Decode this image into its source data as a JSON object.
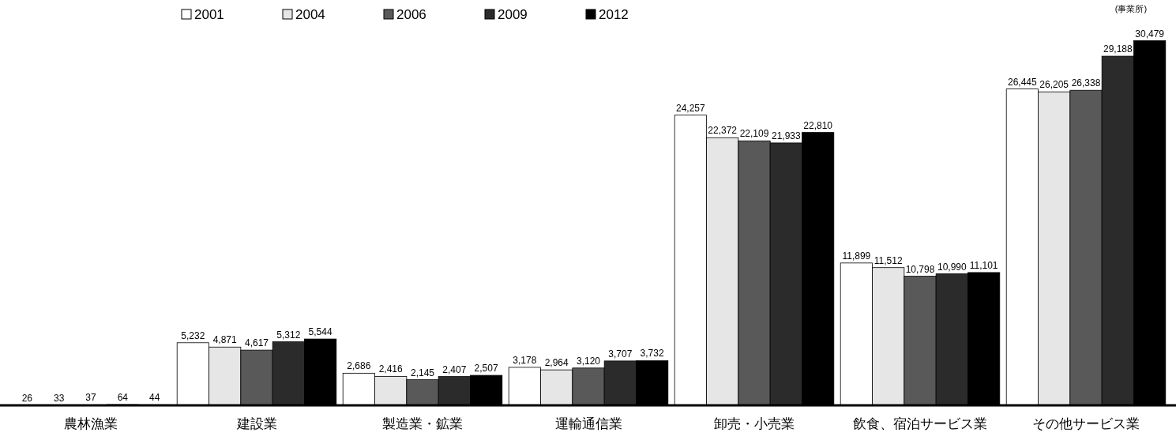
{
  "chart_data": {
    "type": "bar",
    "categories": [
      "農林漁業",
      "建設業",
      "製造業・鉱業",
      "運輸通信業",
      "卸売・小売業",
      "飲食、宿泊サービス業",
      "その他サービス業"
    ],
    "series": [
      {
        "name": "2001",
        "color": "#ffffff",
        "values": [
          26,
          5232,
          2686,
          3178,
          24257,
          11899,
          26445
        ],
        "value_labels": [
          "26",
          "5,232",
          "2,686",
          "3,178",
          "24,257",
          "11,899",
          "26,445"
        ]
      },
      {
        "name": "2004",
        "color": "#e6e6e6",
        "values": [
          33,
          4871,
          2416,
          2964,
          22372,
          11512,
          26205
        ],
        "value_labels": [
          "33",
          "4,871",
          "2,416",
          "2,964",
          "22,372",
          "11,512",
          "26,205"
        ]
      },
      {
        "name": "2006",
        "color": "#595959",
        "values": [
          37,
          4617,
          2145,
          3120,
          22109,
          10798,
          26338
        ],
        "value_labels": [
          "37",
          "4,617",
          "2,145",
          "3,120",
          "22,109",
          "10,798",
          "26,338"
        ]
      },
      {
        "name": "2009",
        "color": "#2b2b2b",
        "values": [
          64,
          5312,
          2407,
          3707,
          21933,
          10990,
          29188
        ],
        "value_labels": [
          "64",
          "5,312",
          "2,407",
          "3,707",
          "21,933",
          "10,990",
          "29,188"
        ]
      },
      {
        "name": "2012",
        "color": "#000000",
        "values": [
          44,
          5544,
          2507,
          3732,
          22810,
          11101,
          30479
        ],
        "value_labels": [
          "44",
          "5,544",
          "2,507",
          "3,732",
          "22,810",
          "11,101",
          "30,479"
        ]
      }
    ],
    "legend": "top left",
    "annotations": [
      "(事業所)"
    ]
  }
}
